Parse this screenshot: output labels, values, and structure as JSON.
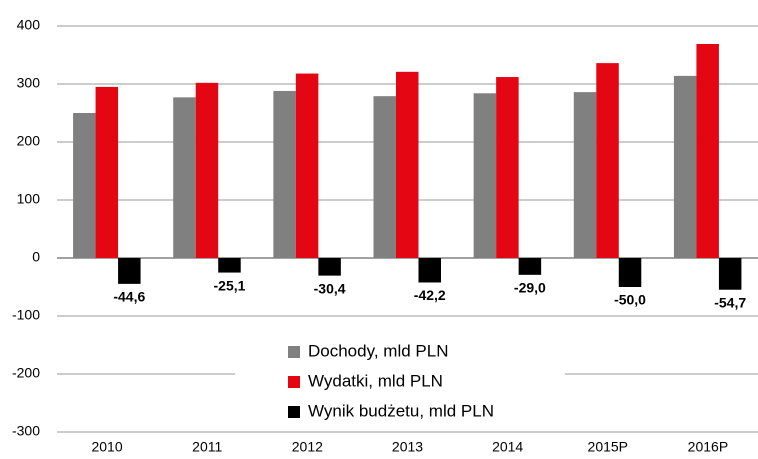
{
  "chart_data": {
    "type": "bar",
    "categories": [
      "2010",
      "2011",
      "2012",
      "2013",
      "2014",
      "2015P",
      "2016P"
    ],
    "series": [
      {
        "name": "Dochody, mld PLN",
        "color": "#808080",
        "values": [
          250,
          277,
          288,
          279,
          284,
          286,
          314
        ]
      },
      {
        "name": "Wydatki, mld PLN",
        "color": "#e30613",
        "values": [
          295,
          302,
          318,
          321,
          312,
          336,
          369
        ]
      },
      {
        "name": "Wynik budżetu, mld PLN",
        "color": "#000000",
        "values": [
          -44.6,
          -25.1,
          -30.4,
          -42.2,
          -29.0,
          -50.0,
          -54.7
        ],
        "value_labels": [
          "-44,6",
          "-25,1",
          "-30,4",
          "-42,2",
          "-29,0",
          "-50,0",
          "-54,7"
        ]
      }
    ],
    "ylim": [
      -300,
      400
    ],
    "yticks": [
      -300,
      -200,
      -100,
      0,
      100,
      200,
      300,
      400
    ],
    "grid": true
  }
}
